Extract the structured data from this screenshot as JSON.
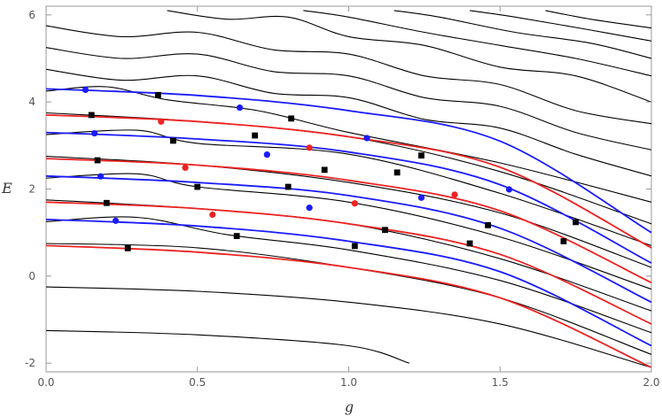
{
  "chart_data": {
    "type": "line",
    "title": "",
    "xlabel": "g",
    "ylabel": "E",
    "xlim": [
      0,
      2
    ],
    "ylim": [
      -2.2,
      6.2
    ],
    "x_ticks": [
      "0.0",
      "0.5",
      "1.0",
      "1.5",
      "2.0"
    ],
    "y_ticks": [
      "-2",
      "0",
      "2",
      "4",
      "6"
    ],
    "grid": false,
    "legend": "none",
    "colors": {
      "blue": "#1a1aff",
      "red": "#ee2222",
      "black": "#000000",
      "axis": "#999999"
    },
    "series": [
      {
        "color": "red",
        "points": [
          [
            0,
            0.7
          ],
          [
            0.5,
            0.55
          ],
          [
            1.0,
            0.2
          ],
          [
            1.5,
            -0.5
          ],
          [
            2.0,
            -2.1
          ]
        ]
      },
      {
        "color": "blue",
        "points": [
          [
            0,
            1.3
          ],
          [
            0.5,
            1.15
          ],
          [
            1.0,
            0.8
          ],
          [
            1.5,
            0.1
          ],
          [
            2.0,
            -1.6
          ]
        ]
      },
      {
        "color": "red",
        "points": [
          [
            0,
            1.7
          ],
          [
            0.5,
            1.55
          ],
          [
            1.0,
            1.2
          ],
          [
            1.5,
            0.5
          ],
          [
            2.0,
            -1.1
          ]
        ]
      },
      {
        "color": "blue",
        "points": [
          [
            0,
            2.3
          ],
          [
            0.5,
            2.15
          ],
          [
            1.0,
            1.85
          ],
          [
            1.5,
            1.1
          ],
          [
            2.0,
            -0.6
          ]
        ]
      },
      {
        "color": "red",
        "points": [
          [
            0,
            2.7
          ],
          [
            0.5,
            2.55
          ],
          [
            1.0,
            2.2
          ],
          [
            1.5,
            1.5
          ],
          [
            2.0,
            -0.15
          ]
        ]
      },
      {
        "color": "blue",
        "points": [
          [
            0,
            3.3
          ],
          [
            0.5,
            3.15
          ],
          [
            1.0,
            2.85
          ],
          [
            1.5,
            2.1
          ],
          [
            2.0,
            0.3
          ]
        ]
      },
      {
        "color": "red",
        "points": [
          [
            0,
            3.7
          ],
          [
            0.5,
            3.55
          ],
          [
            1.0,
            3.2
          ],
          [
            1.5,
            2.5
          ],
          [
            2.0,
            0.65
          ]
        ]
      },
      {
        "color": "blue",
        "points": [
          [
            0,
            4.3
          ],
          [
            0.5,
            4.15
          ],
          [
            1.0,
            3.8
          ],
          [
            1.5,
            3.1
          ],
          [
            2.0,
            1.0
          ]
        ]
      },
      {
        "color": "black",
        "points": [
          [
            0,
            -0.25
          ],
          [
            0.5,
            -0.35
          ],
          [
            1.0,
            -0.6
          ],
          [
            1.5,
            -1.1
          ],
          [
            2.0,
            -2.1
          ]
        ]
      },
      {
        "color": "black",
        "points": [
          [
            0,
            -1.25
          ],
          [
            0.5,
            -1.35
          ],
          [
            1.0,
            -1.6
          ],
          [
            1.2,
            -2.0
          ]
        ]
      },
      {
        "color": "black",
        "points": [
          [
            0,
            0.75
          ],
          [
            0.5,
            0.65
          ],
          [
            1.0,
            0.2
          ],
          [
            1.5,
            -0.5
          ],
          [
            2.0,
            -1.8
          ]
        ]
      },
      {
        "color": "black",
        "points": [
          [
            0,
            1.25
          ],
          [
            0.3,
            1.35
          ],
          [
            0.6,
            0.95
          ],
          [
            1.0,
            0.6
          ],
          [
            1.5,
            -0.1
          ],
          [
            2.0,
            -1.3
          ]
        ]
      },
      {
        "color": "black",
        "points": [
          [
            0,
            1.75
          ],
          [
            0.5,
            1.55
          ],
          [
            1.0,
            1.2
          ],
          [
            1.5,
            0.4
          ],
          [
            2.0,
            -0.8
          ]
        ]
      },
      {
        "color": "black",
        "points": [
          [
            0,
            2.25
          ],
          [
            0.3,
            2.35
          ],
          [
            0.5,
            2.05
          ],
          [
            1.0,
            1.7
          ],
          [
            1.5,
            0.9
          ],
          [
            2.0,
            -0.3
          ]
        ]
      },
      {
        "color": "black",
        "points": [
          [
            0,
            2.75
          ],
          [
            0.5,
            2.55
          ],
          [
            1.0,
            2.15
          ],
          [
            1.5,
            1.45
          ],
          [
            2.0,
            0.2
          ]
        ]
      },
      {
        "color": "black",
        "points": [
          [
            0,
            3.25
          ],
          [
            0.3,
            3.35
          ],
          [
            0.5,
            3.05
          ],
          [
            1.0,
            2.8
          ],
          [
            1.5,
            1.9
          ],
          [
            2.0,
            0.7
          ]
        ]
      },
      {
        "color": "black",
        "points": [
          [
            0,
            3.75
          ],
          [
            0.5,
            3.55
          ],
          [
            1.0,
            3.2
          ],
          [
            1.5,
            2.4
          ],
          [
            2.0,
            1.2
          ]
        ]
      },
      {
        "color": "black",
        "points": [
          [
            0,
            4.25
          ],
          [
            0.2,
            4.35
          ],
          [
            0.4,
            4.05
          ],
          [
            0.7,
            3.8
          ],
          [
            1.0,
            3.3
          ],
          [
            1.5,
            2.6
          ],
          [
            2.0,
            1.7
          ]
        ]
      },
      {
        "color": "black",
        "points": [
          [
            0,
            4.75
          ],
          [
            0.25,
            4.5
          ],
          [
            0.5,
            4.6
          ],
          [
            0.75,
            4.2
          ],
          [
            1.0,
            4.1
          ],
          [
            1.25,
            3.6
          ],
          [
            1.5,
            3.4
          ],
          [
            1.75,
            2.8
          ],
          [
            2.0,
            2.3
          ]
        ]
      },
      {
        "color": "black",
        "points": [
          [
            0,
            5.25
          ],
          [
            0.25,
            5.0
          ],
          [
            0.5,
            5.1
          ],
          [
            0.75,
            4.7
          ],
          [
            1.0,
            4.6
          ],
          [
            1.25,
            4.1
          ],
          [
            1.5,
            3.9
          ],
          [
            1.75,
            3.3
          ],
          [
            2.0,
            2.9
          ]
        ]
      },
      {
        "color": "black",
        "points": [
          [
            0,
            5.75
          ],
          [
            0.25,
            5.5
          ],
          [
            0.5,
            5.6
          ],
          [
            0.75,
            5.2
          ],
          [
            1.0,
            5.1
          ],
          [
            1.25,
            4.6
          ],
          [
            1.5,
            4.4
          ],
          [
            1.75,
            3.8
          ],
          [
            2.0,
            3.5
          ]
        ]
      },
      {
        "color": "black",
        "points": [
          [
            0.4,
            6.1
          ],
          [
            0.6,
            5.9
          ],
          [
            0.8,
            5.95
          ],
          [
            1.0,
            5.5
          ],
          [
            1.25,
            5.3
          ],
          [
            1.5,
            4.8
          ],
          [
            1.75,
            4.6
          ],
          [
            2.0,
            4.0
          ]
        ]
      },
      {
        "color": "black",
        "points": [
          [
            0.85,
            6.1
          ],
          [
            1.0,
            5.95
          ],
          [
            1.25,
            5.6
          ],
          [
            1.5,
            5.3
          ],
          [
            1.75,
            5.0
          ],
          [
            2.0,
            4.6
          ]
        ]
      },
      {
        "color": "black",
        "points": [
          [
            1.15,
            6.1
          ],
          [
            1.3,
            5.95
          ],
          [
            1.55,
            5.6
          ],
          [
            1.8,
            5.35
          ],
          [
            2.0,
            5.0
          ]
        ]
      },
      {
        "color": "black",
        "points": [
          [
            1.4,
            6.1
          ],
          [
            1.55,
            5.95
          ],
          [
            1.8,
            5.65
          ],
          [
            2.0,
            5.4
          ]
        ]
      },
      {
        "color": "black",
        "points": [
          [
            1.65,
            6.1
          ],
          [
            1.8,
            5.9
          ],
          [
            2.0,
            5.7
          ]
        ]
      }
    ],
    "markers": [
      {
        "shape": "circle",
        "color": "blue",
        "x": 0.13,
        "y": 4.28
      },
      {
        "shape": "circle",
        "color": "blue",
        "x": 0.64,
        "y": 3.87
      },
      {
        "shape": "circle",
        "color": "blue",
        "x": 1.06,
        "y": 3.17
      },
      {
        "shape": "circle",
        "color": "blue",
        "x": 1.53,
        "y": 1.99
      },
      {
        "shape": "circle",
        "color": "blue",
        "x": 0.16,
        "y": 3.28
      },
      {
        "shape": "circle",
        "color": "blue",
        "x": 0.73,
        "y": 2.79
      },
      {
        "shape": "circle",
        "color": "blue",
        "x": 1.24,
        "y": 1.8
      },
      {
        "shape": "circle",
        "color": "blue",
        "x": 0.18,
        "y": 2.29
      },
      {
        "shape": "circle",
        "color": "blue",
        "x": 0.87,
        "y": 1.57
      },
      {
        "shape": "circle",
        "color": "blue",
        "x": 0.23,
        "y": 1.27
      },
      {
        "shape": "circle",
        "color": "red",
        "x": 0.38,
        "y": 3.55
      },
      {
        "shape": "circle",
        "color": "red",
        "x": 0.87,
        "y": 2.95
      },
      {
        "shape": "circle",
        "color": "red",
        "x": 1.35,
        "y": 1.87
      },
      {
        "shape": "circle",
        "color": "red",
        "x": 0.46,
        "y": 2.49
      },
      {
        "shape": "circle",
        "color": "red",
        "x": 1.02,
        "y": 1.67
      },
      {
        "shape": "circle",
        "color": "red",
        "x": 0.55,
        "y": 1.41
      },
      {
        "shape": "square",
        "color": "black",
        "x": 0.37,
        "y": 4.16
      },
      {
        "shape": "square",
        "color": "black",
        "x": 0.81,
        "y": 3.62
      },
      {
        "shape": "square",
        "color": "black",
        "x": 1.24,
        "y": 2.77
      },
      {
        "shape": "square",
        "color": "black",
        "x": 1.75,
        "y": 1.24
      },
      {
        "shape": "square",
        "color": "black",
        "x": 0.15,
        "y": 3.7
      },
      {
        "shape": "square",
        "color": "black",
        "x": 0.69,
        "y": 3.23
      },
      {
        "shape": "square",
        "color": "black",
        "x": 1.16,
        "y": 2.38
      },
      {
        "shape": "square",
        "color": "black",
        "x": 1.71,
        "y": 0.8
      },
      {
        "shape": "square",
        "color": "black",
        "x": 0.42,
        "y": 3.11
      },
      {
        "shape": "square",
        "color": "black",
        "x": 0.92,
        "y": 2.44
      },
      {
        "shape": "square",
        "color": "black",
        "x": 1.46,
        "y": 1.17
      },
      {
        "shape": "square",
        "color": "black",
        "x": 0.17,
        "y": 2.66
      },
      {
        "shape": "square",
        "color": "black",
        "x": 0.8,
        "y": 2.05
      },
      {
        "shape": "square",
        "color": "black",
        "x": 1.4,
        "y": 0.75
      },
      {
        "shape": "square",
        "color": "black",
        "x": 0.5,
        "y": 2.05
      },
      {
        "shape": "square",
        "color": "black",
        "x": 1.12,
        "y": 1.06
      },
      {
        "shape": "square",
        "color": "black",
        "x": 0.2,
        "y": 1.68
      },
      {
        "shape": "square",
        "color": "black",
        "x": 0.63,
        "y": 0.92
      },
      {
        "shape": "square",
        "color": "black",
        "x": 1.02,
        "y": 0.69
      },
      {
        "shape": "square",
        "color": "black",
        "x": 0.27,
        "y": 0.64
      }
    ]
  }
}
